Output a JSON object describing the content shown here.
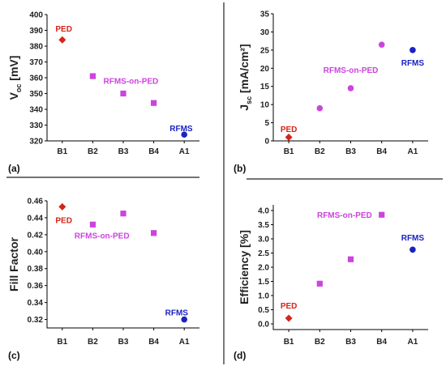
{
  "colors": {
    "PED": "#d62418",
    "RFMS-on-PED": "#cc44dd",
    "RFMS": "#1a22c0"
  },
  "chart_data": [
    {
      "id": "a",
      "type": "scatter",
      "panel_label": "(a)",
      "ylabel_main": "V",
      "ylabel_sub": "oc",
      "ylabel_rest": " [mV]",
      "categories": [
        "B1",
        "B2",
        "B3",
        "B4",
        "A1"
      ],
      "ylim": [
        320,
        400
      ],
      "yticks": [
        320,
        330,
        340,
        350,
        360,
        370,
        380,
        390,
        400
      ],
      "ytick_labels": [
        "320",
        "330",
        "340",
        "350",
        "360",
        "370",
        "380",
        "390",
        "400"
      ],
      "points": [
        {
          "cat": "B1",
          "y": 384,
          "group": "PED",
          "marker": "diamond"
        },
        {
          "cat": "B2",
          "y": 361,
          "group": "RFMS-on-PED",
          "marker": "square"
        },
        {
          "cat": "B3",
          "y": 350,
          "group": "RFMS-on-PED",
          "marker": "square"
        },
        {
          "cat": "B4",
          "y": 344,
          "group": "RFMS-on-PED",
          "marker": "square"
        },
        {
          "cat": "A1",
          "y": 324,
          "group": "RFMS",
          "marker": "circle"
        }
      ],
      "annotations": [
        {
          "text": "PED",
          "group": "PED",
          "cat_index": 0.05,
          "y": 391
        },
        {
          "text": "RFMS-on-PED",
          "group": "RFMS-on-PED",
          "cat_index": 2.25,
          "y": 358
        },
        {
          "text": "RFMS",
          "group": "RFMS",
          "cat_index": 3.9,
          "y": 328
        }
      ]
    },
    {
      "id": "b",
      "type": "scatter",
      "panel_label": "(b)",
      "ylabel_main": "J",
      "ylabel_sub": "sc",
      "ylabel_rest": " [mA/cm²]",
      "categories": [
        "B1",
        "B2",
        "B3",
        "B4",
        "A1"
      ],
      "ylim": [
        0,
        35
      ],
      "yticks": [
        0,
        5,
        10,
        15,
        20,
        25,
        30,
        35
      ],
      "ytick_labels": [
        "0",
        "5",
        "10",
        "15",
        "20",
        "25",
        "30",
        "35"
      ],
      "points": [
        {
          "cat": "B1",
          "y": 1,
          "group": "PED",
          "marker": "diamond"
        },
        {
          "cat": "B2",
          "y": 9,
          "group": "RFMS-on-PED",
          "marker": "circle"
        },
        {
          "cat": "B3",
          "y": 14.5,
          "group": "RFMS-on-PED",
          "marker": "circle"
        },
        {
          "cat": "B4",
          "y": 26.5,
          "group": "RFMS-on-PED",
          "marker": "circle"
        },
        {
          "cat": "A1",
          "y": 25,
          "group": "RFMS",
          "marker": "circle"
        }
      ],
      "annotations": [
        {
          "text": "PED",
          "group": "PED",
          "cat_index": 0.0,
          "y": 3.2
        },
        {
          "text": "RFMS-on-PED",
          "group": "RFMS-on-PED",
          "cat_index": 2.0,
          "y": 19.5
        },
        {
          "text": "RFMS",
          "group": "RFMS",
          "cat_index": 4.0,
          "y": 21.5
        }
      ]
    },
    {
      "id": "c",
      "type": "scatter",
      "panel_label": "(c)",
      "ylabel_main": "Fill Factor",
      "ylabel_sub": "",
      "ylabel_rest": "",
      "categories": [
        "B1",
        "B2",
        "B3",
        "B4",
        "A1"
      ],
      "ylim": [
        0.31,
        0.46
      ],
      "yticks": [
        0.32,
        0.34,
        0.36,
        0.38,
        0.4,
        0.42,
        0.44,
        0.46
      ],
      "ytick_labels": [
        "0.32",
        "0.34",
        "0.36",
        "0.38",
        "0.40",
        "0.42",
        "0.44",
        "0.46"
      ],
      "points": [
        {
          "cat": "B1",
          "y": 0.453,
          "group": "PED",
          "marker": "diamond"
        },
        {
          "cat": "B2",
          "y": 0.432,
          "group": "RFMS-on-PED",
          "marker": "square"
        },
        {
          "cat": "B3",
          "y": 0.445,
          "group": "RFMS-on-PED",
          "marker": "square"
        },
        {
          "cat": "B4",
          "y": 0.422,
          "group": "RFMS-on-PED",
          "marker": "square"
        },
        {
          "cat": "A1",
          "y": 0.32,
          "group": "RFMS",
          "marker": "circle"
        }
      ],
      "annotations": [
        {
          "text": "PED",
          "group": "PED",
          "cat_index": 0.05,
          "y": 0.437
        },
        {
          "text": "RFMS-on-PED",
          "group": "RFMS-on-PED",
          "cat_index": 1.3,
          "y": 0.419
        },
        {
          "text": "RFMS",
          "group": "RFMS",
          "cat_index": 3.75,
          "y": 0.328
        }
      ]
    },
    {
      "id": "d",
      "type": "scatter",
      "panel_label": "(d)",
      "ylabel_main": "Efficiency [%]",
      "ylabel_sub": "",
      "ylabel_rest": "",
      "categories": [
        "B1",
        "B2",
        "B3",
        "B4",
        "A1"
      ],
      "ylim": [
        -0.2,
        4.2
      ],
      "yticks": [
        0.0,
        0.5,
        1.0,
        1.5,
        2.0,
        2.5,
        3.0,
        3.5,
        4.0
      ],
      "ytick_labels": [
        "0.0",
        "0.5",
        "1.0",
        "1.5",
        "2.0",
        "2.5",
        "3.0",
        "3.5",
        "4.0"
      ],
      "points": [
        {
          "cat": "B1",
          "y": 0.2,
          "group": "PED",
          "marker": "diamond"
        },
        {
          "cat": "B2",
          "y": 1.42,
          "group": "RFMS-on-PED",
          "marker": "square"
        },
        {
          "cat": "B3",
          "y": 2.28,
          "group": "RFMS-on-PED",
          "marker": "square"
        },
        {
          "cat": "B4",
          "y": 3.85,
          "group": "RFMS-on-PED",
          "marker": "square"
        },
        {
          "cat": "A1",
          "y": 2.62,
          "group": "RFMS",
          "marker": "circle"
        }
      ],
      "annotations": [
        {
          "text": "PED",
          "group": "PED",
          "cat_index": 0.0,
          "y": 0.65
        },
        {
          "text": "RFMS-on-PED",
          "group": "RFMS-on-PED",
          "cat_index": 1.8,
          "y": 3.85
        },
        {
          "text": "RFMS",
          "group": "RFMS",
          "cat_index": 4.0,
          "y": 3.05
        }
      ]
    }
  ]
}
